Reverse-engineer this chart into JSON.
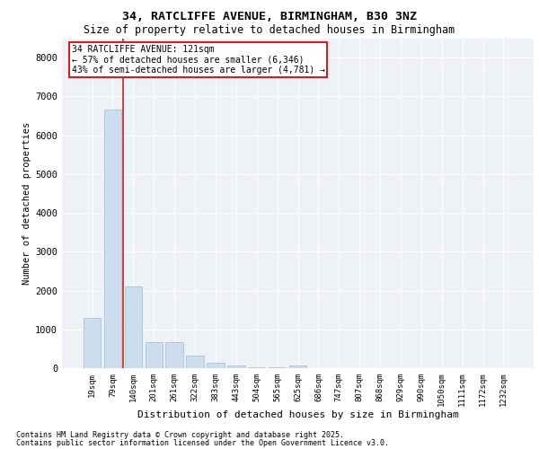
{
  "title_line1": "34, RATCLIFFE AVENUE, BIRMINGHAM, B30 3NZ",
  "title_line2": "Size of property relative to detached houses in Birmingham",
  "xlabel": "Distribution of detached houses by size in Birmingham",
  "ylabel": "Number of detached properties",
  "categories": [
    "19sqm",
    "79sqm",
    "140sqm",
    "201sqm",
    "261sqm",
    "322sqm",
    "383sqm",
    "443sqm",
    "504sqm",
    "565sqm",
    "625sqm",
    "686sqm",
    "747sqm",
    "807sqm",
    "868sqm",
    "929sqm",
    "990sqm",
    "1050sqm",
    "1111sqm",
    "1172sqm",
    "1232sqm"
  ],
  "values": [
    1300,
    6650,
    2100,
    660,
    660,
    330,
    140,
    70,
    30,
    20,
    70,
    0,
    0,
    0,
    0,
    0,
    0,
    0,
    0,
    0,
    0
  ],
  "bar_color": "#ccdded",
  "bar_edge_color": "#aac4d8",
  "vline_color": "#cc2222",
  "annotation_title": "34 RATCLIFFE AVENUE: 121sqm",
  "annotation_line1": "← 57% of detached houses are smaller (6,346)",
  "annotation_line2": "43% of semi-detached houses are larger (4,781) →",
  "annotation_box_edgecolor": "#cc2222",
  "ylim": [
    0,
    8500
  ],
  "yticks": [
    0,
    1000,
    2000,
    3000,
    4000,
    5000,
    6000,
    7000,
    8000
  ],
  "footer_line1": "Contains HM Land Registry data © Crown copyright and database right 2025.",
  "footer_line2": "Contains public sector information licensed under the Open Government Licence v3.0.",
  "plot_bg_color": "#eef2f7",
  "grid_color": "#ffffff",
  "fig_bg_color": "#ffffff"
}
